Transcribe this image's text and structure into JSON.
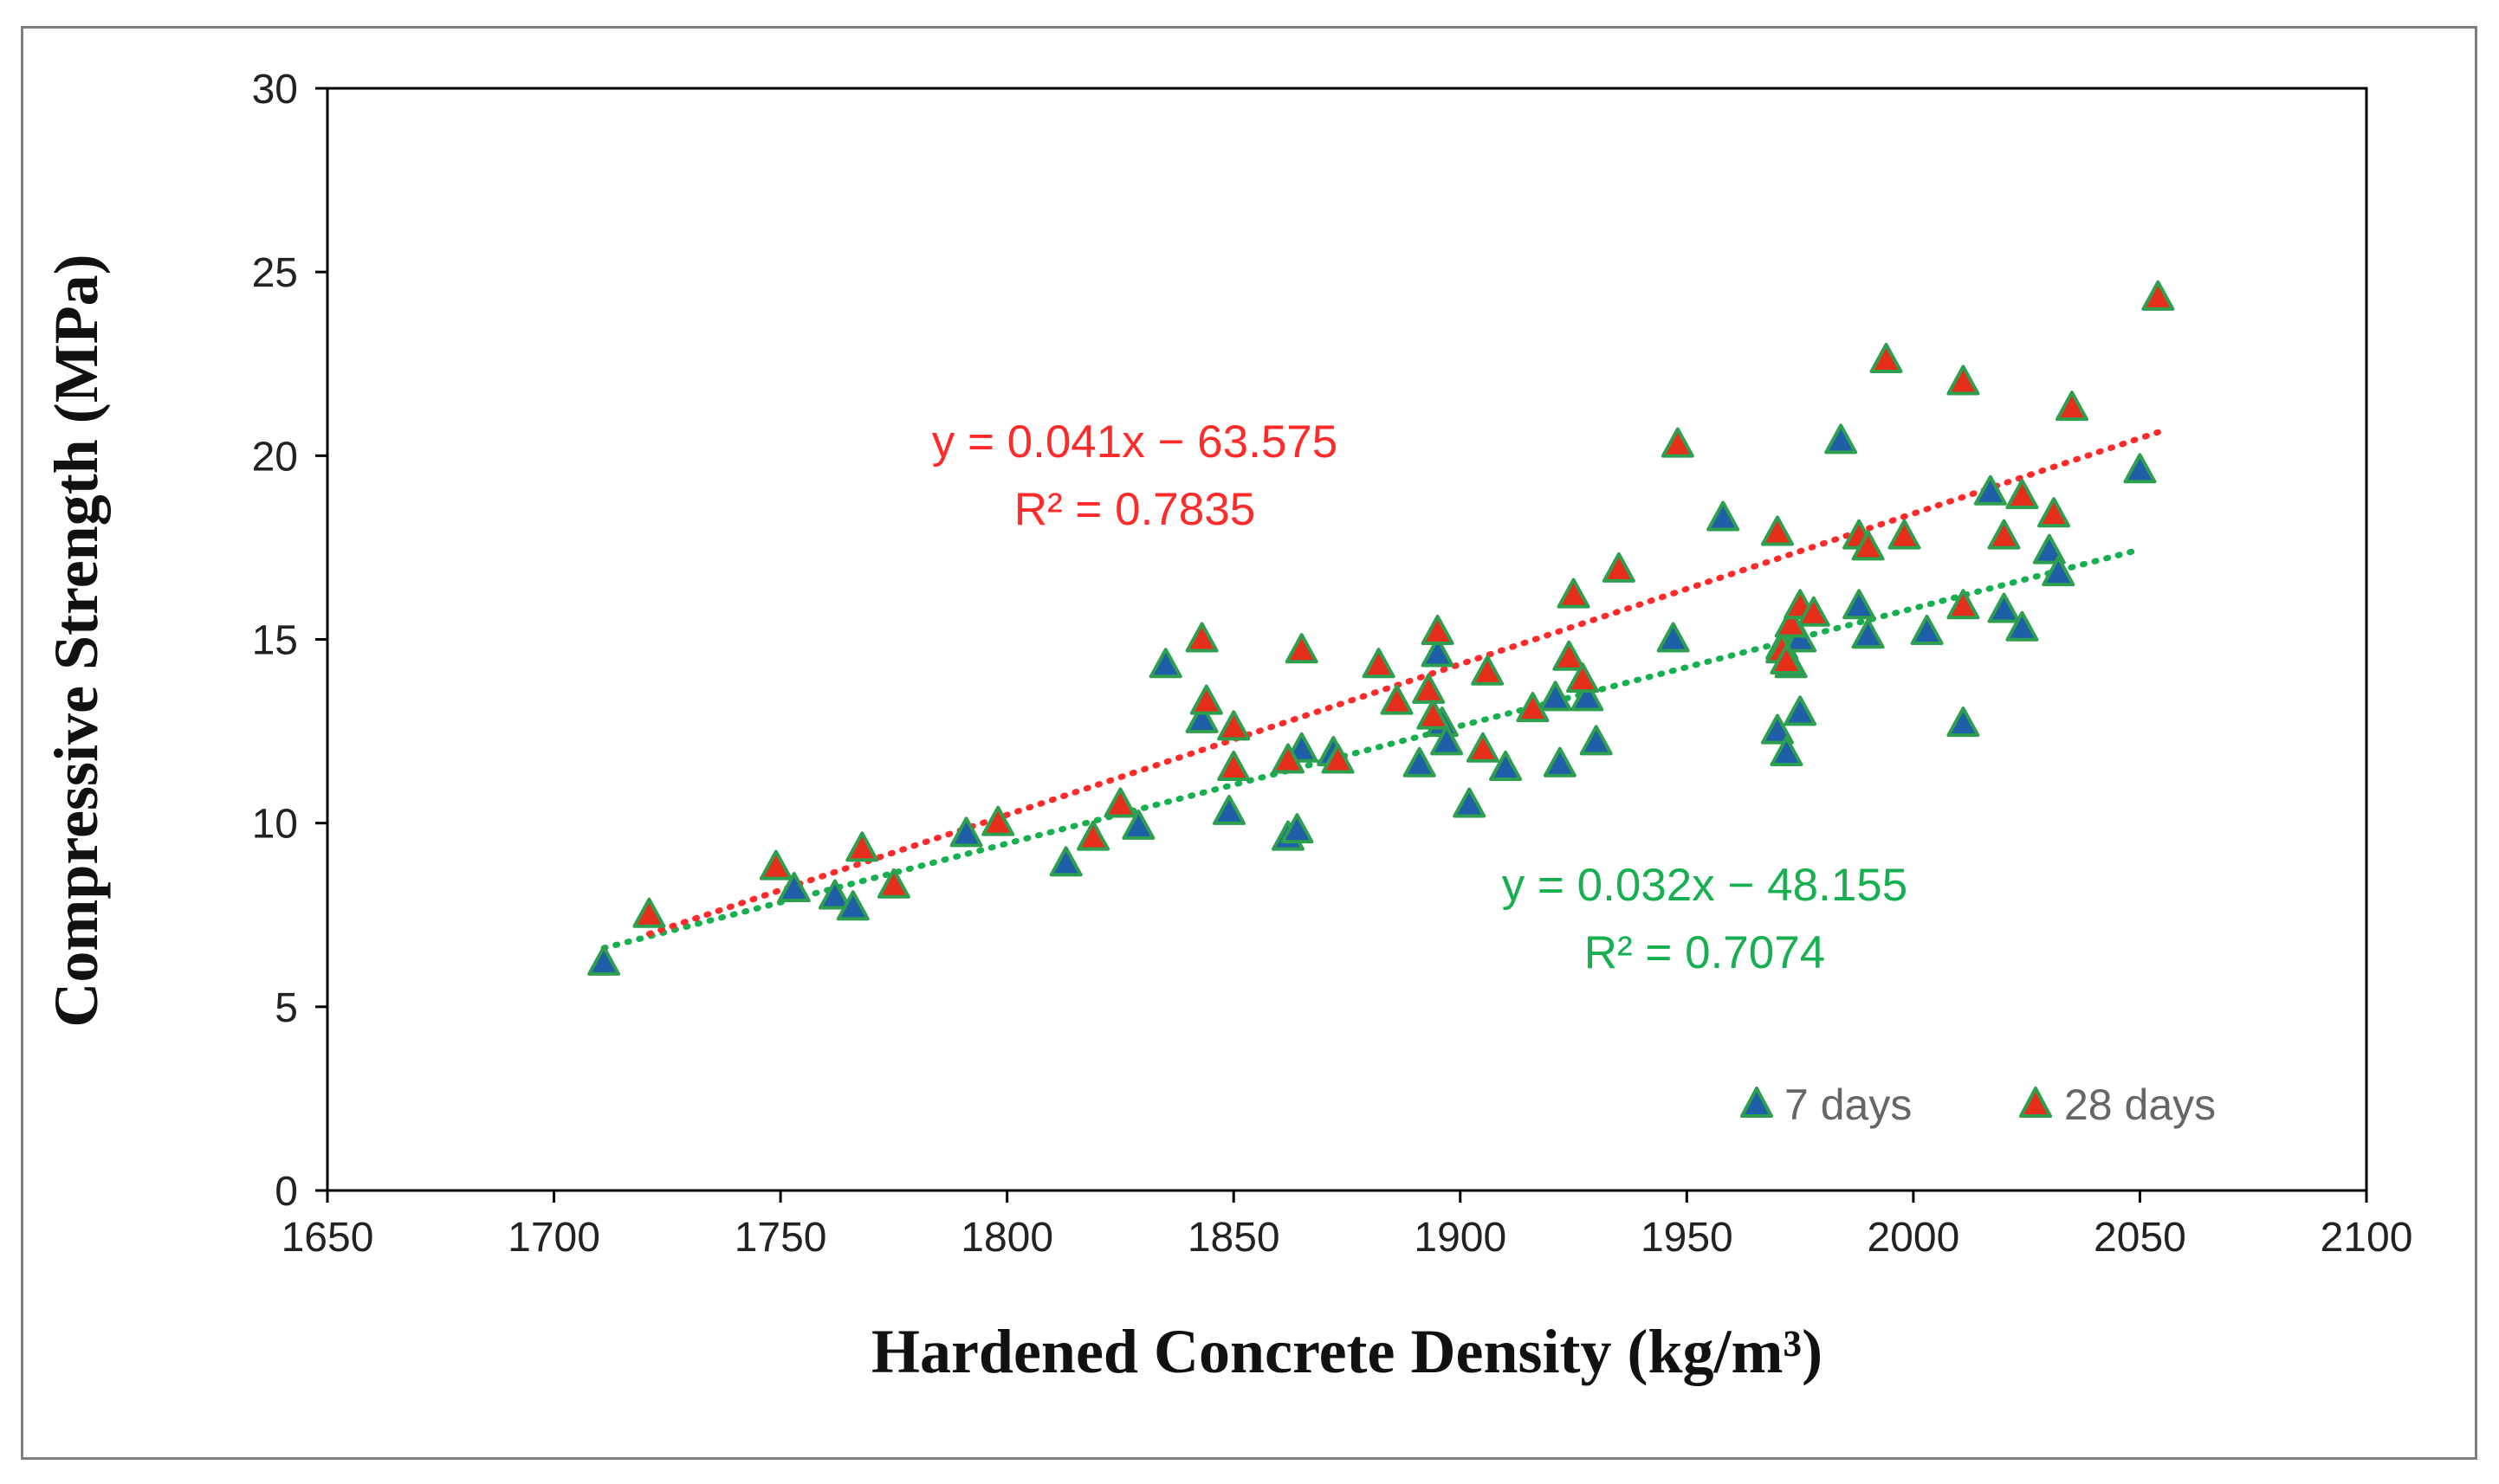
{
  "chart_data": {
    "type": "scatter",
    "title": "",
    "xlabel": "Hardened Concrete Density (kg/m³)",
    "ylabel": "Compressive Strength (MPa)",
    "xlim": [
      1650,
      2100
    ],
    "ylim": [
      0,
      30
    ],
    "xticks": [
      1650,
      1700,
      1750,
      1800,
      1850,
      1900,
      1950,
      2000,
      2050,
      2100
    ],
    "yticks": [
      0,
      5,
      10,
      15,
      20,
      25,
      30
    ],
    "xtick_labels": [
      "1650",
      "1700",
      "1750",
      "1800",
      "1850",
      "1900",
      "1950",
      "2000",
      "2050",
      "2100"
    ],
    "ytick_labels": [
      "0",
      "5",
      "10",
      "15",
      "20",
      "25",
      "30"
    ],
    "grid": false,
    "legend_position": "bottom-right",
    "series": [
      {
        "name": "7 days",
        "color": "#2e9e4f",
        "fill": "#1f5fa8",
        "points": [
          [
            1711,
            6.2
          ],
          [
            1753,
            8.2
          ],
          [
            1762,
            8.0
          ],
          [
            1766,
            7.7
          ],
          [
            1791,
            9.7
          ],
          [
            1813,
            8.9
          ],
          [
            1829,
            9.9
          ],
          [
            1835,
            14.3
          ],
          [
            1843,
            12.8
          ],
          [
            1849,
            10.3
          ],
          [
            1862,
            9.6
          ],
          [
            1864,
            9.8
          ],
          [
            1865,
            12.0
          ],
          [
            1872,
            11.9
          ],
          [
            1891,
            11.6
          ],
          [
            1895,
            14.6
          ],
          [
            1896,
            12.7
          ],
          [
            1897,
            12.2
          ],
          [
            1902,
            10.5
          ],
          [
            1910,
            11.5
          ],
          [
            1921,
            13.4
          ],
          [
            1922,
            11.6
          ],
          [
            1928,
            13.4
          ],
          [
            1930,
            12.2
          ],
          [
            1947,
            15.0
          ],
          [
            1958,
            18.3
          ],
          [
            1970,
            12.5
          ],
          [
            1971,
            14.8
          ],
          [
            1972,
            11.9
          ],
          [
            1973,
            14.3
          ],
          [
            1975,
            15.0
          ],
          [
            1975,
            13.0
          ],
          [
            1984,
            20.4
          ],
          [
            1988,
            15.9
          ],
          [
            1990,
            15.1
          ],
          [
            2003,
            15.2
          ],
          [
            2011,
            12.7
          ],
          [
            2017,
            19.0
          ],
          [
            2020,
            15.8
          ],
          [
            2024,
            15.3
          ],
          [
            2030,
            17.4
          ],
          [
            2032,
            16.8
          ],
          [
            2050,
            19.6
          ]
        ],
        "trendline": {
          "x_range": [
            1711,
            2050
          ],
          "slope": 0.032,
          "intercept": -48.155,
          "equation": "y = 0.032x − 48.155",
          "r2_label": "R² = 0.7074"
        }
      },
      {
        "name": "28 days",
        "color": "#2e9e4f",
        "fill": "#e62f1a",
        "points": [
          [
            1721,
            7.5
          ],
          [
            1749,
            8.8
          ],
          [
            1768,
            9.3
          ],
          [
            1775,
            8.3
          ],
          [
            1798,
            10.0
          ],
          [
            1819,
            9.6
          ],
          [
            1825,
            10.5
          ],
          [
            1843,
            15.0
          ],
          [
            1844,
            13.3
          ],
          [
            1850,
            12.6
          ],
          [
            1850,
            11.5
          ],
          [
            1862,
            11.7
          ],
          [
            1865,
            14.7
          ],
          [
            1873,
            11.7
          ],
          [
            1882,
            14.3
          ],
          [
            1886,
            13.3
          ],
          [
            1893,
            13.6
          ],
          [
            1894,
            12.9
          ],
          [
            1895,
            15.2
          ],
          [
            1905,
            12.0
          ],
          [
            1906,
            14.1
          ],
          [
            1916,
            13.1
          ],
          [
            1924,
            14.5
          ],
          [
            1925,
            16.2
          ],
          [
            1927,
            13.9
          ],
          [
            1935,
            16.9
          ],
          [
            1948,
            20.3
          ],
          [
            1970,
            17.9
          ],
          [
            1971,
            14.7
          ],
          [
            1972,
            14.4
          ],
          [
            1973,
            15.4
          ],
          [
            1975,
            15.9
          ],
          [
            1978,
            15.7
          ],
          [
            1988,
            17.8
          ],
          [
            1990,
            17.5
          ],
          [
            1994,
            22.6
          ],
          [
            1998,
            17.8
          ],
          [
            2011,
            22.0
          ],
          [
            2011,
            15.9
          ],
          [
            2020,
            17.8
          ],
          [
            2024,
            18.9
          ],
          [
            2031,
            18.4
          ],
          [
            2035,
            21.3
          ],
          [
            2054,
            24.3
          ]
        ],
        "trendline": {
          "x_range": [
            1721,
            2054
          ],
          "slope": 0.041,
          "intercept": -63.575,
          "equation": "y = 0.041x − 63.575",
          "r2_label": "R² = 0.7835"
        }
      }
    ]
  }
}
